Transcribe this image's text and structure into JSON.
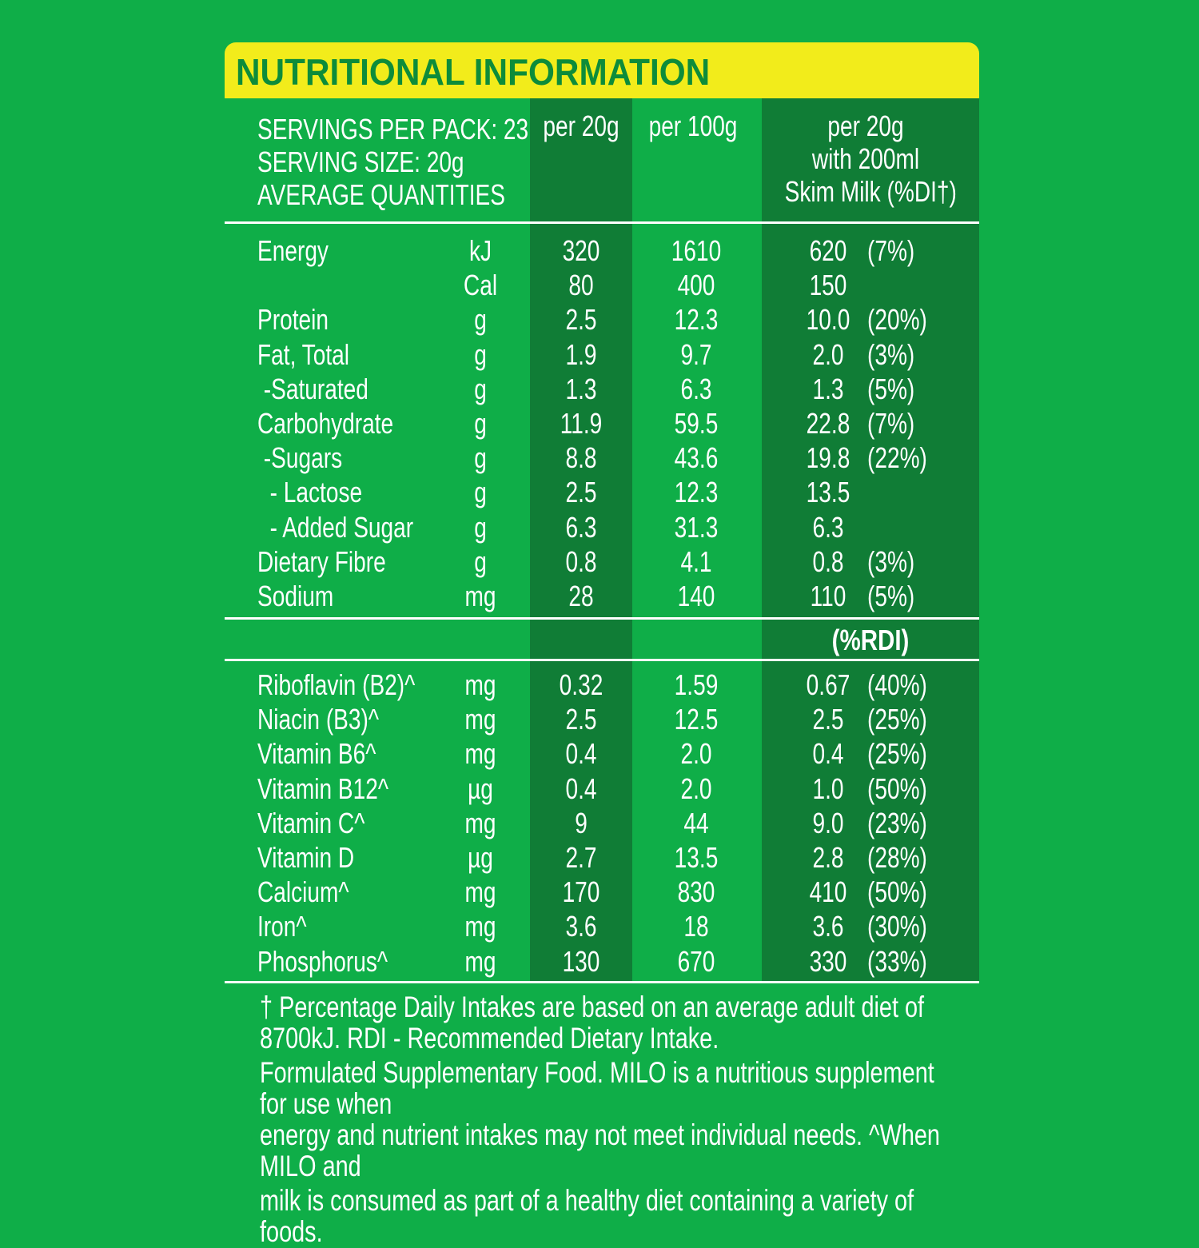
{
  "title": "NUTRITIONAL INFORMATION",
  "header": {
    "servings_per_pack": "SERVINGS PER PACK: 23",
    "serving_size": "SERVING SIZE: 20g",
    "average_quantities": "AVERAGE QUANTITIES",
    "col_per_serving": "per 20g",
    "col_per_100g": "per 100g",
    "col_with_milk_line1": "per 20g",
    "col_with_milk_line2": "with 200ml",
    "col_with_milk_line3": "Skim Milk (%DI†)"
  },
  "nutrients": [
    {
      "name": "Energy",
      "unit": "kJ",
      "per_serving": "320",
      "per_100g": "1610",
      "with_milk": "620",
      "pct": "(7%)"
    },
    {
      "name": "",
      "unit": "Cal",
      "per_serving": "80",
      "per_100g": "400",
      "with_milk": "150",
      "pct": ""
    },
    {
      "name": "Protein",
      "unit": "g",
      "per_serving": "2.5",
      "per_100g": "12.3",
      "with_milk": "10.0",
      "pct": "(20%)"
    },
    {
      "name": "Fat, Total",
      "unit": "g",
      "per_serving": "1.9",
      "per_100g": "9.7",
      "with_milk": "2.0",
      "pct": "(3%)"
    },
    {
      "name": " -Saturated",
      "unit": "g",
      "per_serving": "1.3",
      "per_100g": "6.3",
      "with_milk": "1.3",
      "pct": "(5%)"
    },
    {
      "name": "Carbohydrate",
      "unit": "g",
      "per_serving": "11.9",
      "per_100g": "59.5",
      "with_milk": "22.8",
      "pct": "(7%)"
    },
    {
      "name": " -Sugars",
      "unit": "g",
      "per_serving": "8.8",
      "per_100g": "43.6",
      "with_milk": "19.8",
      "pct": "(22%)"
    },
    {
      "name": "  - Lactose",
      "unit": "g",
      "per_serving": "2.5",
      "per_100g": "12.3",
      "with_milk": "13.5",
      "pct": ""
    },
    {
      "name": "  - Added Sugar",
      "unit": "g",
      "per_serving": "6.3",
      "per_100g": "31.3",
      "with_milk": "6.3",
      "pct": ""
    },
    {
      "name": "Dietary Fibre",
      "unit": "g",
      "per_serving": "0.8",
      "per_100g": "4.1",
      "with_milk": "0.8",
      "pct": "(3%)"
    },
    {
      "name": "Sodium",
      "unit": "mg",
      "per_serving": "28",
      "per_100g": "140",
      "with_milk": "110",
      "pct": "(5%)"
    }
  ],
  "rdi_label": "(%RDI)",
  "vitamins": [
    {
      "name": "Riboflavin (B2)^",
      "unit": "mg",
      "per_serving": "0.32",
      "per_100g": "1.59",
      "with_milk": "0.67",
      "pct": "(40%)"
    },
    {
      "name": "Niacin (B3)^",
      "unit": "mg",
      "per_serving": "2.5",
      "per_100g": "12.5",
      "with_milk": "2.5",
      "pct": "(25%)"
    },
    {
      "name": "Vitamin B6^",
      "unit": "mg",
      "per_serving": "0.4",
      "per_100g": "2.0",
      "with_milk": "0.4",
      "pct": "(25%)"
    },
    {
      "name": "Vitamin B12^",
      "unit": "µg",
      "per_serving": "0.4",
      "per_100g": "2.0",
      "with_milk": "1.0",
      "pct": "(50%)"
    },
    {
      "name": "Vitamin C^",
      "unit": "mg",
      "per_serving": "9",
      "per_100g": "44",
      "with_milk": "9.0",
      "pct": "(23%)"
    },
    {
      "name": "Vitamin D",
      "unit": "µg",
      "per_serving": "2.7",
      "per_100g": "13.5",
      "with_milk": "2.8",
      "pct": "(28%)"
    },
    {
      "name": "Calcium^",
      "unit": "mg",
      "per_serving": "170",
      "per_100g": "830",
      "with_milk": "410",
      "pct": "(50%)"
    },
    {
      "name": "Iron^",
      "unit": "mg",
      "per_serving": "3.6",
      "per_100g": "18",
      "with_milk": "3.6",
      "pct": "(30%)"
    },
    {
      "name": "Phosphorus^",
      "unit": "mg",
      "per_serving": "130",
      "per_100g": "670",
      "with_milk": "330",
      "pct": "(33%)"
    }
  ],
  "footer": {
    "line1": "† Percentage Daily Intakes are based on an average adult diet of",
    "line2": "8700kJ. RDI - Recommended Dietary Intake.",
    "line3": "Formulated Supplementary Food. MILO is a nutritious supplement for use when",
    "line4": "energy and nutrient intakes may not meet individual needs. ^When MILO and",
    "line5": "milk is consumed as part of a healthy diet containing a variety of foods."
  },
  "colors": {
    "background": "#0fae48",
    "dark_column": "#107d36",
    "title_bar": "#f2ec1b",
    "title_text": "#0d8c3a"
  }
}
